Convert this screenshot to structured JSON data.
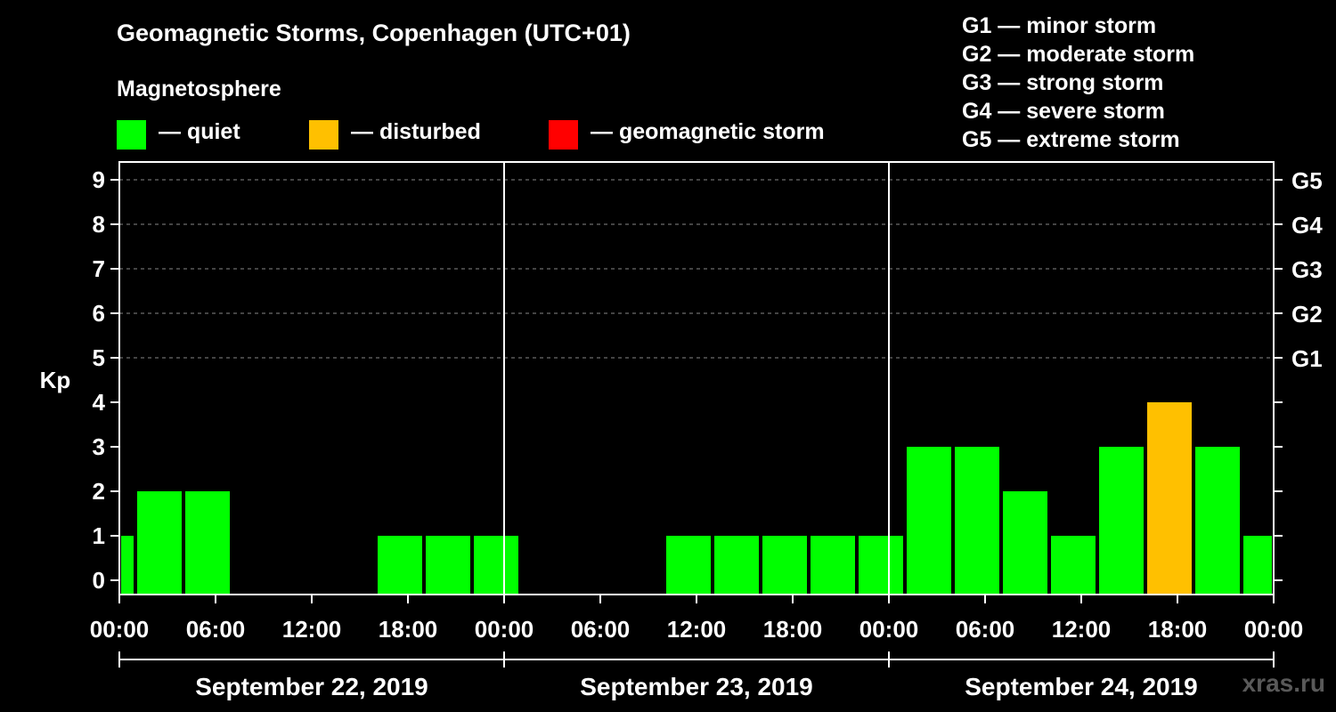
{
  "header": {
    "title": "Geomagnetic Storms, Copenhagen (UTC+01)",
    "subtitle": "Magnetosphere"
  },
  "legend": [
    {
      "label": "— quiet",
      "color": "#00ff00"
    },
    {
      "label": "— disturbed",
      "color": "#ffc000"
    },
    {
      "label": "— geomagnetic storm",
      "color": "#ff0000"
    }
  ],
  "g_scale": [
    "G1 — minor storm",
    "G2 — moderate storm",
    "G3 — strong storm",
    "G4 — severe storm",
    "G5 — extreme storm"
  ],
  "watermark": "xras.ru",
  "chart_data": {
    "type": "bar",
    "title": "Geomagnetic Storms, Copenhagen (UTC+01)",
    "ylabel": "Kp",
    "ylim": [
      0,
      9
    ],
    "yticks": [
      "0",
      "1",
      "2",
      "3",
      "4",
      "5",
      "6",
      "7",
      "8",
      "9"
    ],
    "right_ticks": [
      {
        "kp": 5,
        "label": "G1"
      },
      {
        "kp": 6,
        "label": "G2"
      },
      {
        "kp": 7,
        "label": "G3"
      },
      {
        "kp": 8,
        "label": "G4"
      },
      {
        "kp": 9,
        "label": "G5"
      }
    ],
    "x_range_hours": [
      0,
      72
    ],
    "x_ticks_hours": [
      0,
      6,
      12,
      18,
      24,
      30,
      36,
      42,
      48,
      54,
      60,
      66,
      72
    ],
    "x_tick_labels": [
      "00:00",
      "06:00",
      "12:00",
      "18:00",
      "00:00",
      "06:00",
      "12:00",
      "18:00",
      "00:00",
      "06:00",
      "12:00",
      "18:00",
      "00:00"
    ],
    "day_dividers_hours": [
      24,
      48
    ],
    "days": [
      "September 22, 2019",
      "September 23, 2019",
      "September 24, 2019"
    ],
    "bars": [
      {
        "start": 0,
        "end": 1,
        "kp": 1,
        "level": "quiet"
      },
      {
        "start": 1,
        "end": 4,
        "kp": 2,
        "level": "quiet"
      },
      {
        "start": 4,
        "end": 7,
        "kp": 2,
        "level": "quiet"
      },
      {
        "start": 7,
        "end": 10,
        "kp": 0,
        "level": "quiet"
      },
      {
        "start": 10,
        "end": 13,
        "kp": 0,
        "level": "quiet"
      },
      {
        "start": 13,
        "end": 16,
        "kp": 0,
        "level": "quiet"
      },
      {
        "start": 16,
        "end": 19,
        "kp": 1,
        "level": "quiet"
      },
      {
        "start": 19,
        "end": 22,
        "kp": 1,
        "level": "quiet"
      },
      {
        "start": 22,
        "end": 25,
        "kp": 1,
        "level": "quiet"
      },
      {
        "start": 25,
        "end": 28,
        "kp": 0,
        "level": "quiet"
      },
      {
        "start": 28,
        "end": 31,
        "kp": 0,
        "level": "quiet"
      },
      {
        "start": 31,
        "end": 34,
        "kp": 0,
        "level": "quiet"
      },
      {
        "start": 34,
        "end": 37,
        "kp": 1,
        "level": "quiet"
      },
      {
        "start": 37,
        "end": 40,
        "kp": 1,
        "level": "quiet"
      },
      {
        "start": 40,
        "end": 43,
        "kp": 1,
        "level": "quiet"
      },
      {
        "start": 43,
        "end": 46,
        "kp": 1,
        "level": "quiet"
      },
      {
        "start": 46,
        "end": 49,
        "kp": 1,
        "level": "quiet"
      },
      {
        "start": 49,
        "end": 52,
        "kp": 3,
        "level": "quiet"
      },
      {
        "start": 52,
        "end": 55,
        "kp": 3,
        "level": "quiet"
      },
      {
        "start": 55,
        "end": 58,
        "kp": 2,
        "level": "quiet"
      },
      {
        "start": 58,
        "end": 61,
        "kp": 1,
        "level": "quiet"
      },
      {
        "start": 61,
        "end": 64,
        "kp": 3,
        "level": "quiet"
      },
      {
        "start": 64,
        "end": 67,
        "kp": 4,
        "level": "disturbed"
      },
      {
        "start": 67,
        "end": 70,
        "kp": 3,
        "level": "quiet"
      },
      {
        "start": 70,
        "end": 72,
        "kp": 1,
        "level": "quiet"
      }
    ],
    "colors": {
      "quiet": "#00ff00",
      "disturbed": "#ffc000",
      "storm": "#ff0000",
      "grid": "#888888",
      "axis": "#ffffff"
    }
  }
}
